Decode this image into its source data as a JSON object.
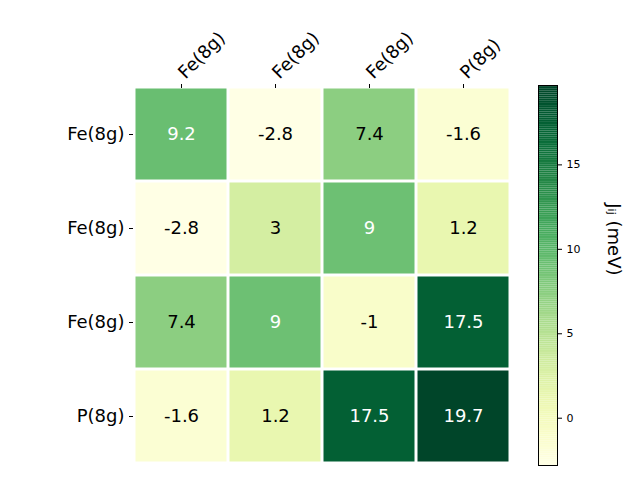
{
  "chart_data": {
    "type": "heatmap",
    "x_categories": [
      "Fe(8g)",
      "Fe(8g)",
      "Fe(8g)",
      "P(8g)"
    ],
    "y_categories": [
      "Fe(8g)",
      "Fe(8g)",
      "Fe(8g)",
      "P(8g)"
    ],
    "cells": [
      [
        9.2,
        -2.8,
        7.4,
        -1.6
      ],
      [
        -2.8,
        3.0,
        9.0,
        1.2
      ],
      [
        7.4,
        9.0,
        -1.0,
        17.5
      ],
      [
        -1.6,
        1.2,
        17.5,
        19.7
      ]
    ],
    "color": "YlGn",
    "data_labels": true,
    "colorbar": {
      "label": "Jᵢⱼ (meV)",
      "range": [
        -2.8,
        19.7
      ],
      "ticks": [
        0,
        5,
        10,
        15
      ]
    }
  }
}
